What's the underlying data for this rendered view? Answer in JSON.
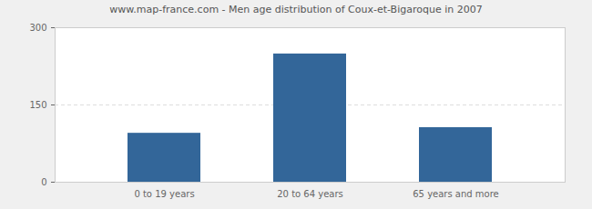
{
  "chart_data": {
    "type": "bar",
    "title": "www.map-france.com - Men age distribution of Coux-et-Bigaroque in 2007",
    "categories": [
      "0 to 19 years",
      "20 to 64 years",
      "65 years and more"
    ],
    "values": [
      95,
      249,
      106
    ],
    "color": "#336699",
    "ylim": [
      0,
      300
    ],
    "yticks": [
      0,
      150,
      300
    ],
    "grid": true
  }
}
